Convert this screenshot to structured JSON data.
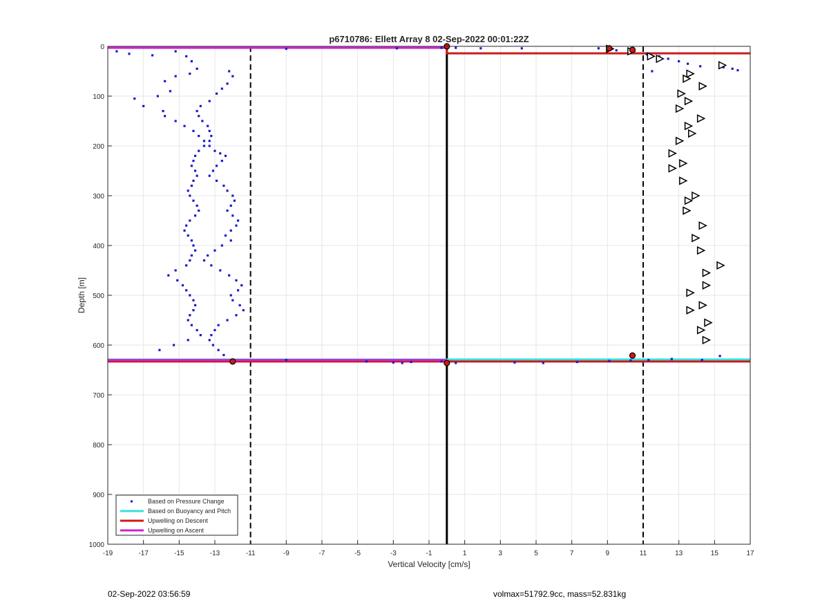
{
  "chart_data": {
    "type": "scatter",
    "title": "p6710786: Ellett Array 8 02-Sep-2022 00:01:22Z",
    "xlabel": "Vertical Velocity [cm/s]",
    "ylabel": "Depth [m]",
    "xlim": [
      -19,
      17
    ],
    "ylim": [
      0,
      1000
    ],
    "y_reversed": true,
    "grid": true,
    "x_ticks": [
      -19,
      -17,
      -15,
      -13,
      -11,
      -9,
      -7,
      -5,
      -3,
      -1,
      1,
      3,
      5,
      7,
      9,
      11,
      13,
      15,
      17
    ],
    "y_ticks": [
      0,
      100,
      200,
      300,
      400,
      500,
      600,
      700,
      800,
      900,
      1000
    ],
    "legend_position": "bottom-left",
    "legend": [
      "Based on Pressure Change",
      "Based on Buoyancy and Pitch",
      "Upwelling on Descent",
      "Upwelling on Ascent"
    ],
    "colors": {
      "pressure": "#1a1acc",
      "buoyancy": "#33e0e0",
      "descent": "#cc1a1a",
      "ascent": "#d11fd1",
      "reference": "#000000"
    },
    "reference_lines": [
      {
        "x": -11,
        "style": "dashed"
      },
      {
        "x": 0,
        "style": "solid"
      },
      {
        "x": 11,
        "style": "dashed"
      }
    ],
    "series": [
      {
        "name": "Based on Pressure Change",
        "kind": "points",
        "x": [
          -18.5,
          -17.8,
          -16.5,
          -15.2,
          -14.6,
          -14.3,
          -14.0,
          -14.4,
          -15.2,
          -15.8,
          -15.5,
          -16.2,
          -17.5,
          -17.0,
          -15.9,
          -15.8,
          -15.2,
          -14.7,
          -14.2,
          -13.9,
          -13.6,
          -13.3,
          -13.0,
          -12.7,
          -12.4,
          -12.6,
          -12.9,
          -13.1,
          -13.3,
          -12.9,
          -12.5,
          -12.3,
          -12.0,
          -11.9,
          -12.1,
          -12.3,
          -12.0,
          -11.7,
          -11.8,
          -12.1,
          -12.4,
          -12.1,
          -12.6,
          -13.0,
          -13.4,
          -13.6,
          -13.2,
          -12.7,
          -12.2,
          -11.8,
          -11.5,
          -11.7,
          -12.1,
          -12.0,
          -11.6,
          -11.4,
          -11.8,
          -12.3,
          -12.8,
          -13.0,
          -13.2,
          -13.3,
          -13.1,
          -12.8,
          -12.5,
          -12.2,
          -12.0,
          -12.3,
          -12.6,
          -12.9,
          -13.3,
          -13.8,
          -14.0,
          -13.9,
          -13.7,
          -13.4,
          -13.3,
          -13.2,
          -13.3,
          -13.6,
          -13.9,
          -14.1,
          -14.2,
          -14.3,
          -14.1,
          -14.0,
          -14.2,
          -14.3,
          -14.5,
          -14.4,
          -14.2,
          -14.0,
          -13.9,
          -14.1,
          -14.4,
          -14.6,
          -14.7,
          -14.5,
          -14.3,
          -14.2,
          -14.1,
          -14.3,
          -14.4,
          -14.6,
          -15.2,
          -15.6,
          -15.1,
          -14.8,
          -14.6,
          -14.4,
          -14.2,
          -14.1,
          -14.2,
          -14.4,
          -14.5,
          -14.3,
          -14.0,
          -13.8,
          -14.5,
          -15.3,
          -16.1,
          -9.0,
          -2.8,
          -0.3,
          0.5,
          1.9,
          4.2,
          8.5,
          9.0,
          9.5,
          10.3,
          11.2,
          11.9,
          12.4,
          13.0,
          13.5,
          14.2,
          15.5,
          16.0,
          16.3,
          11.5,
          -9.0,
          -4.5,
          -3.0,
          -2.5,
          -2.0,
          -0.3,
          0.5,
          3.8,
          5.4,
          7.3,
          9.1,
          10.3,
          11.3,
          12.6,
          14.3,
          15.3
        ],
        "y": [
          10,
          15,
          18,
          10,
          20,
          30,
          45,
          55,
          60,
          70,
          90,
          100,
          105,
          120,
          130,
          140,
          150,
          160,
          170,
          180,
          190,
          200,
          210,
          215,
          220,
          230,
          240,
          250,
          260,
          270,
          280,
          290,
          300,
          310,
          320,
          330,
          340,
          350,
          360,
          370,
          380,
          390,
          400,
          410,
          420,
          430,
          440,
          450,
          460,
          470,
          480,
          490,
          500,
          510,
          520,
          530,
          540,
          550,
          560,
          570,
          580,
          590,
          600,
          610,
          620,
          50,
          60,
          75,
          85,
          95,
          110,
          120,
          130,
          140,
          150,
          160,
          170,
          180,
          190,
          200,
          210,
          220,
          230,
          240,
          250,
          260,
          270,
          280,
          290,
          300,
          310,
          320,
          330,
          340,
          350,
          360,
          370,
          380,
          390,
          400,
          410,
          420,
          430,
          440,
          450,
          460,
          470,
          480,
          490,
          500,
          510,
          520,
          530,
          540,
          550,
          560,
          570,
          580,
          590,
          600,
          610,
          5,
          4,
          3,
          3,
          4,
          4,
          4,
          5,
          8,
          12,
          16,
          20,
          25,
          30,
          35,
          40,
          42,
          45,
          48,
          50,
          630,
          633,
          635,
          636,
          634,
          633,
          636,
          635,
          636,
          634,
          632,
          631,
          630,
          628,
          630,
          622
        ]
      },
      {
        "name": "",
        "kind": "triangles",
        "x": [
          9.1,
          10.3,
          11.4,
          11.9,
          15.4,
          13.6,
          13.4,
          14.3,
          13.1,
          13.5,
          13.0,
          14.2,
          13.5,
          13.7,
          13.0,
          12.6,
          13.2,
          12.6,
          13.2,
          13.9,
          13.5,
          13.4,
          14.3,
          13.9,
          14.2,
          15.3,
          14.5,
          14.5,
          13.6,
          14.3,
          13.6,
          14.6,
          14.2,
          14.5
        ],
        "y": [
          5,
          10,
          20,
          25,
          38,
          55,
          65,
          80,
          95,
          110,
          125,
          145,
          160,
          175,
          190,
          215,
          235,
          245,
          270,
          300,
          310,
          330,
          360,
          385,
          410,
          440,
          455,
          480,
          495,
          520,
          530,
          555,
          570,
          590
        ]
      },
      {
        "name": "Based on Buoyancy and Pitch",
        "kind": "line",
        "x": [
          -19,
          17
        ],
        "y": [
          629,
          629
        ]
      },
      {
        "name": "Upwelling on Descent",
        "kind": "line",
        "x": [
          0,
          0,
          17
        ],
        "y": [
          3,
          14,
          14
        ],
        "x2": [
          -19,
          17
        ],
        "y2": [
          633,
          633
        ]
      },
      {
        "name": "Upwelling on Ascent",
        "kind": "line",
        "x": [
          -19,
          0
        ],
        "y": [
          3,
          3
        ],
        "x2": [
          -19,
          0
        ],
        "y2": [
          630,
          630
        ]
      }
    ],
    "markers": [
      {
        "x": 0,
        "y": 0
      },
      {
        "x": 9.1,
        "y": 4
      },
      {
        "x": 10.4,
        "y": 7
      },
      {
        "x": -12.0,
        "y": 633
      },
      {
        "x": 0,
        "y": 636
      },
      {
        "x": 10.4,
        "y": 621
      }
    ]
  },
  "footer": {
    "left": "02-Sep-2022 03:56:59",
    "right": "volmax=51792.9cc, mass=52.831kg"
  }
}
